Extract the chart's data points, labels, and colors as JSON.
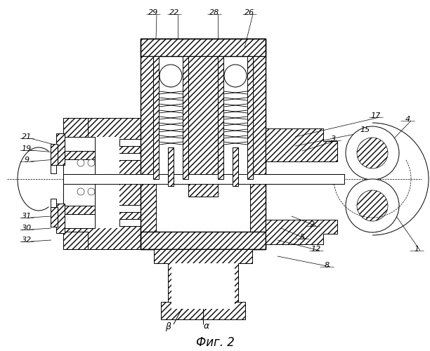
{
  "title": "Фиг. 2",
  "bg_color": "#ffffff",
  "figsize": [
    6.12,
    5.0
  ],
  "dpi": 100
}
